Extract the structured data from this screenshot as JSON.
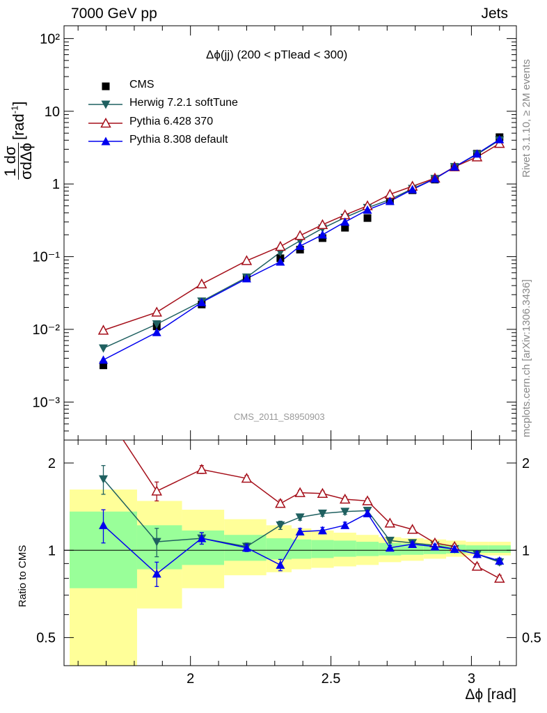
{
  "header": {
    "left": "7000 GeV pp",
    "right": "Jets"
  },
  "side": {
    "top": "Rivet 3.1.10, ≥ 2M events",
    "bottom": "mcplots.cern.ch [arXiv:1306.3436]"
  },
  "colors": {
    "cms": "#000000",
    "herwig": "#1f6060",
    "pythia6": "#a50f1a",
    "pythia8": "#0000ee",
    "band_inner": "#99ff99",
    "band_outer": "#ffff99"
  },
  "chart_data": [
    {
      "type": "scatter",
      "title": "Δϕ(jj) (200 < pTlead <  300)",
      "watermark": "CMS_2011_S8950903",
      "ylabel": {
        "numerator": "1 dσ",
        "denominator": "σdΔϕ",
        "unit": "[rad",
        "unit_exp": "-1",
        "unit_close": "]"
      },
      "yscale": "log",
      "ylim": [
        0.0003,
        150
      ],
      "xlim": [
        1.55,
        3.16
      ],
      "yticks": [
        "10⁻³",
        "10⁻²",
        "10⁻¹",
        "1",
        "10",
        "10²"
      ],
      "legend_position": "top-left",
      "series": [
        {
          "name": "CMS",
          "marker": "square",
          "x": [
            1.69,
            1.88,
            2.04,
            2.2,
            2.32,
            2.39,
            2.47,
            2.55,
            2.63,
            2.71,
            2.79,
            2.87,
            2.94,
            3.02,
            3.1
          ],
          "y": [
            0.0032,
            0.011,
            0.022,
            0.051,
            0.095,
            0.125,
            0.18,
            0.25,
            0.34,
            0.58,
            0.82,
            1.15,
            1.7,
            2.6,
            4.4
          ]
        },
        {
          "name": "Herwig 7.2.1 softTune",
          "marker": "triangle-down",
          "x": [
            1.69,
            1.88,
            2.04,
            2.2,
            2.32,
            2.39,
            2.47,
            2.55,
            2.63,
            2.71,
            2.79,
            2.87,
            2.94,
            3.02,
            3.1
          ],
          "y": [
            0.0055,
            0.0118,
            0.0243,
            0.052,
            0.115,
            0.165,
            0.245,
            0.345,
            0.47,
            0.61,
            0.86,
            1.18,
            1.72,
            2.55,
            4.0
          ]
        },
        {
          "name": "Pythia 6.428 370",
          "marker": "triangle-open",
          "x": [
            1.69,
            1.88,
            2.04,
            2.2,
            2.32,
            2.39,
            2.47,
            2.55,
            2.63,
            2.71,
            2.79,
            2.87,
            2.94,
            3.02,
            3.1
          ],
          "y": [
            0.0097,
            0.0172,
            0.042,
            0.088,
            0.138,
            0.195,
            0.275,
            0.375,
            0.5,
            0.72,
            0.93,
            1.2,
            1.72,
            2.35,
            3.6
          ]
        },
        {
          "name": "Pythia 8.308 default",
          "marker": "triangle-up",
          "x": [
            1.69,
            1.88,
            2.04,
            2.2,
            2.32,
            2.39,
            2.47,
            2.55,
            2.63,
            2.71,
            2.79,
            2.87,
            2.94,
            3.02,
            3.1
          ],
          "y": [
            0.0038,
            0.0091,
            0.0235,
            0.05,
            0.085,
            0.14,
            0.2,
            0.3,
            0.44,
            0.58,
            0.84,
            1.18,
            1.72,
            2.6,
            4.1
          ]
        }
      ]
    },
    {
      "type": "line",
      "ylabel": "Ratio to CMS",
      "xlabel": "Δϕ [rad]",
      "yscale": "log",
      "ylim": [
        0.4,
        2.4
      ],
      "xlim": [
        1.55,
        3.16
      ],
      "yticks": [
        0.5,
        1,
        2
      ],
      "xticks": [
        2,
        2.5,
        3
      ],
      "bands": {
        "edges": [
          1.57,
          1.81,
          1.97,
          2.12,
          2.27,
          2.36,
          2.43,
          2.51,
          2.59,
          2.67,
          2.75,
          2.83,
          2.91,
          2.98,
          3.06,
          3.14
        ],
        "inner_low": [
          0.74,
          0.86,
          0.89,
          0.92,
          0.93,
          0.935,
          0.94,
          0.95,
          0.955,
          0.96,
          0.965,
          0.97,
          0.975,
          0.98,
          0.98
        ],
        "inner_high": [
          1.36,
          1.22,
          1.17,
          1.13,
          1.1,
          1.09,
          1.085,
          1.08,
          1.07,
          1.06,
          1.055,
          1.05,
          1.045,
          1.04,
          1.04
        ],
        "outer_low": [
          0.1,
          0.63,
          0.74,
          0.82,
          0.84,
          0.86,
          0.87,
          0.88,
          0.89,
          0.91,
          0.92,
          0.935,
          0.95,
          0.96,
          0.96
        ],
        "outer_high": [
          1.62,
          1.48,
          1.38,
          1.28,
          1.22,
          1.19,
          1.17,
          1.15,
          1.13,
          1.11,
          1.1,
          1.09,
          1.08,
          1.07,
          1.07
        ]
      },
      "series": [
        {
          "name": "Herwig 7.2.1 softTune",
          "marker": "triangle-down",
          "x": [
            1.69,
            1.88,
            2.04,
            2.2,
            2.32,
            2.39,
            2.47,
            2.55,
            2.63,
            2.71,
            2.79,
            2.87,
            2.94,
            3.02,
            3.1
          ],
          "y": [
            1.76,
            1.07,
            1.1,
            1.03,
            1.22,
            1.3,
            1.34,
            1.36,
            1.37,
            1.08,
            1.06,
            1.04,
            1.01,
            0.97,
            0.91
          ],
          "err": [
            0.2,
            0.12,
            0.05,
            0.03,
            0.04,
            0.03,
            0.03,
            0.03,
            0.03,
            0.02,
            0.02,
            0.02,
            0.02,
            0.02,
            0.02
          ]
        },
        {
          "name": "Pythia 6.428 370",
          "marker": "triangle-open",
          "x": [
            1.69,
            1.88,
            2.04,
            2.2,
            2.32,
            2.39,
            2.47,
            2.55,
            2.63,
            2.71,
            2.79,
            2.87,
            2.94,
            3.02,
            3.1
          ],
          "y": [
            3.05,
            1.6,
            1.9,
            1.77,
            1.45,
            1.58,
            1.57,
            1.5,
            1.48,
            1.24,
            1.18,
            1.06,
            1.03,
            0.88,
            0.8
          ],
          "err": [
            0.2,
            0.12,
            0.06,
            0.04,
            0.04,
            0.03,
            0.03,
            0.03,
            0.03,
            0.02,
            0.02,
            0.02,
            0.02,
            0.02,
            0.02
          ]
        },
        {
          "name": "Pythia 8.308 default",
          "marker": "triangle-up",
          "x": [
            1.69,
            1.88,
            2.04,
            2.2,
            2.32,
            2.39,
            2.47,
            2.55,
            2.63,
            2.71,
            2.79,
            2.87,
            2.94,
            3.02,
            3.1
          ],
          "y": [
            1.22,
            0.83,
            1.1,
            1.02,
            0.89,
            1.16,
            1.17,
            1.22,
            1.34,
            1.02,
            1.05,
            1.03,
            1.01,
            0.97,
            0.92
          ],
          "err": [
            0.16,
            0.08,
            0.05,
            0.03,
            0.04,
            0.03,
            0.03,
            0.03,
            0.03,
            0.02,
            0.02,
            0.02,
            0.02,
            0.02,
            0.02
          ]
        }
      ]
    }
  ]
}
